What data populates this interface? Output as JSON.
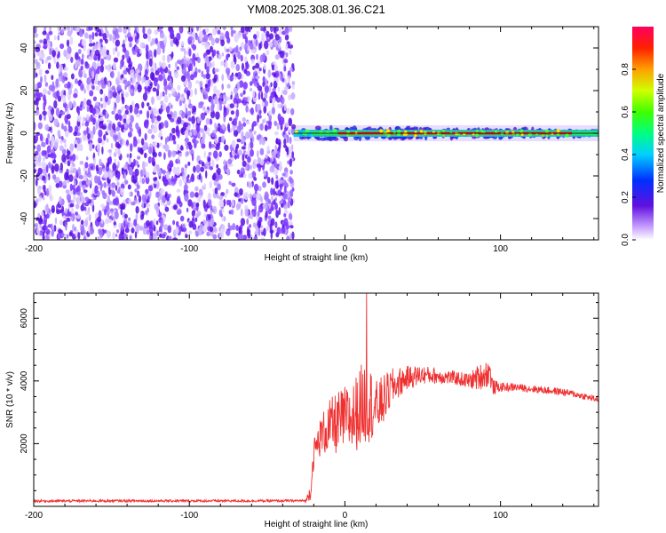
{
  "title": "YM08.2025.308.01.36.C21",
  "colors": {
    "snr_line": "#f03030",
    "spectrogram_low": "#7020e0",
    "spectrogram_high": "#ff0040"
  },
  "chart_data": [
    {
      "type": "heatmap",
      "xlabel": "Height of straight line (km)",
      "ylabel": "Frequency (Hz)",
      "xlim": [
        -200,
        163
      ],
      "ylim": [
        -50,
        50
      ],
      "x_ticks": [
        -200,
        -100,
        0,
        100
      ],
      "y_ticks": [
        -40,
        -20,
        0,
        20,
        40
      ],
      "grid": false,
      "colorbar": {
        "label": "Normalized spectral amplitude",
        "range": [
          0,
          1
        ],
        "ticks": [
          "0.0",
          "0.2",
          "0.4",
          "0.6",
          "0.8"
        ],
        "tick_values": [
          0.0,
          0.2,
          0.4,
          0.6,
          0.8
        ],
        "colormap": "hsv-rainbow",
        "placement": "right"
      },
      "regions": [
        {
          "x_range": [
            -200,
            -33
          ],
          "pattern": "broadband noise speckle",
          "amplitude": 0.05
        },
        {
          "x_range": [
            -33,
            163
          ],
          "pattern": "narrow band centered on 0 Hz",
          "frequency": 0,
          "peak_amplitude": 1.0
        }
      ]
    },
    {
      "type": "line",
      "xlabel": "Height of straight line (km)",
      "ylabel": "SNR (10 * v/v)",
      "xlim": [
        -200,
        163
      ],
      "ylim": [
        0,
        6800
      ],
      "x_ticks": [
        -200,
        -100,
        0,
        100
      ],
      "y_ticks": [
        2000,
        4000,
        6000
      ],
      "grid": false,
      "series": [
        {
          "x": [
            -200,
            -150,
            -100,
            -50,
            -25,
            -22,
            -20,
            -15,
            -10,
            -5,
            0,
            5,
            10,
            14,
            20,
            25,
            30,
            40,
            50,
            60,
            70,
            80,
            85,
            90,
            93,
            95,
            100,
            110,
            120,
            130,
            140,
            150,
            163
          ],
          "y": [
            170,
            175,
            175,
            175,
            180,
            500,
            1700,
            2300,
            2500,
            2650,
            2800,
            2800,
            3200,
            3400,
            3100,
            3400,
            3800,
            4100,
            4200,
            4150,
            4100,
            4000,
            4100,
            4200,
            4300,
            3800,
            3800,
            3800,
            3750,
            3700,
            3650,
            3550,
            3400
          ],
          "noise_amplitude": [
            40,
            40,
            40,
            40,
            40,
            300,
            450,
            650,
            900,
            1000,
            1050,
            1150,
            1300,
            1400,
            900,
            800,
            600,
            380,
            300,
            250,
            220,
            250,
            400,
            450,
            450,
            250,
            150,
            120,
            120,
            120,
            120,
            110,
            100
          ],
          "spike": {
            "x": 14,
            "y": 6800
          }
        }
      ]
    }
  ]
}
